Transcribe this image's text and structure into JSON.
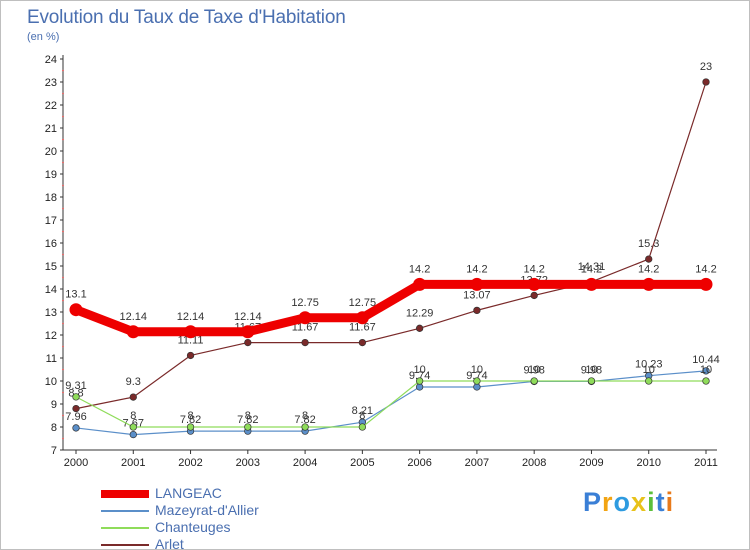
{
  "chart_data": {
    "type": "line",
    "title": "Evolution du Taux de Taxe d'Habitation",
    "subtitle": "(en %)",
    "x": [
      "2000",
      "2001",
      "2002",
      "2003",
      "2004",
      "2005",
      "2006",
      "2007",
      "2008",
      "2009",
      "2010",
      "2011"
    ],
    "ylim": [
      7,
      24
    ],
    "yticks": [
      "7",
      "8",
      "9",
      "10",
      "11",
      "12",
      "13",
      "14",
      "15",
      "16",
      "17",
      "18",
      "19",
      "20",
      "21",
      "22",
      "23",
      "24"
    ],
    "series": [
      {
        "name": "LANGEAC",
        "color": "#ee0000",
        "values": [
          13.1,
          12.14,
          12.14,
          12.14,
          12.75,
          12.75,
          14.2,
          14.2,
          14.2,
          14.2,
          14.2,
          14.2
        ],
        "labels": [
          "13.1",
          "12.14",
          "12.14",
          "12.14",
          "12.75",
          "12.75",
          "14.2",
          "14.2",
          "14.2",
          "14.2",
          "14.2",
          "14.2"
        ]
      },
      {
        "name": "Mazeyrat-d'Allier",
        "color": "#5b8fc9",
        "values": [
          7.96,
          7.67,
          7.82,
          7.82,
          7.82,
          8.21,
          9.74,
          9.74,
          9.98,
          9.98,
          10.23,
          10.44
        ],
        "labels": [
          "7.96",
          "7.67",
          "7.82",
          "7.82",
          "7.82",
          "8.21",
          "9.74",
          "9.74",
          "9.98",
          "9.98",
          "10.23",
          "10.44"
        ]
      },
      {
        "name": "Chanteuges",
        "color": "#8fdc5a",
        "values": [
          9.31,
          8,
          8,
          8,
          8,
          8,
          10,
          10,
          10,
          10,
          10,
          10
        ],
        "labels": [
          "9.31",
          "8",
          "8",
          "8",
          "8",
          "8",
          "10",
          "10",
          "10",
          "10",
          "10",
          "10"
        ]
      },
      {
        "name": "Arlet",
        "color": "#7a2a2a",
        "values": [
          8.8,
          9.3,
          11.11,
          11.67,
          11.67,
          11.67,
          12.29,
          13.07,
          13.72,
          14.31,
          15.3,
          23
        ],
        "labels": [
          "8.8",
          "9.3",
          "11.11",
          "11.67",
          "11.67",
          "11.67",
          "12.29",
          "13.07",
          "13.72",
          "14.31",
          "15.3",
          "23"
        ]
      }
    ],
    "legend": [
      "LANGEAC",
      "Mazeyrat-d'Allier",
      "Chanteuges",
      "Arlet"
    ]
  },
  "logo": {
    "letters": [
      "P",
      "r",
      "o",
      "x",
      "i",
      "t",
      "i"
    ],
    "colors": [
      "#3a7fd6",
      "#f2a413",
      "#2e9be0",
      "#e8c21a",
      "#5bbf3a",
      "#3a7fd6",
      "#e87a1a"
    ]
  }
}
